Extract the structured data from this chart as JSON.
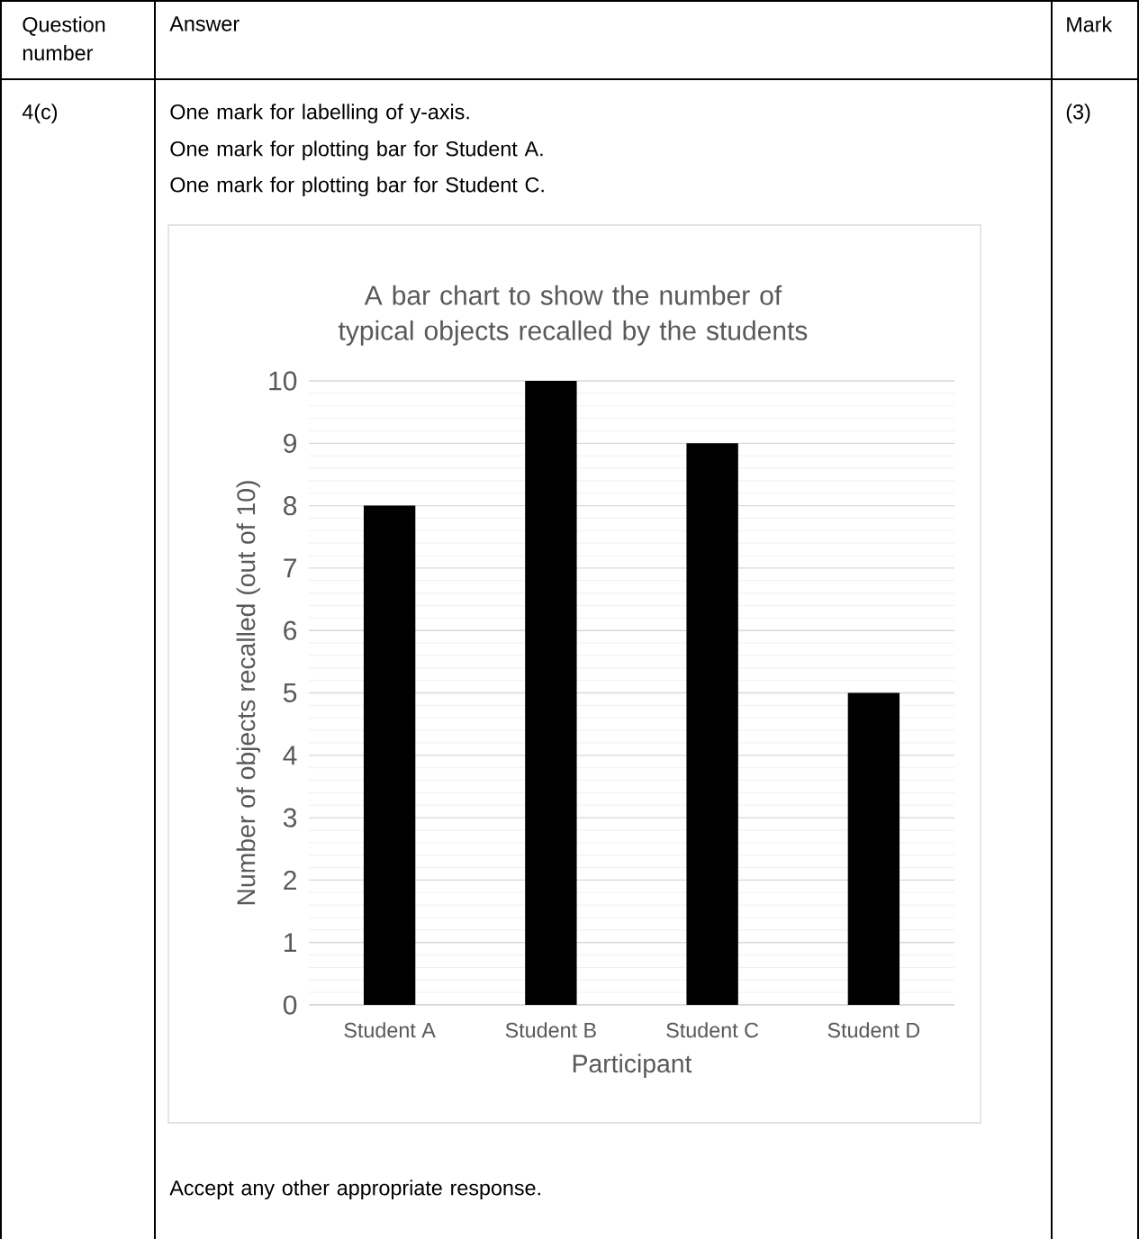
{
  "chart_data": {
    "type": "bar",
    "title": "A bar chart to show the number of typical objects recalled by the students",
    "xlabel": "Participant",
    "ylabel": "Number of objects recalled (out of 10)",
    "categories": [
      "Student A",
      "Student B",
      "Student C",
      "Student D"
    ],
    "values": [
      8,
      10,
      9,
      5
    ],
    "color": "#000000",
    "ylim": [
      0,
      10
    ],
    "yticks": [
      0,
      1,
      2,
      3,
      4,
      5,
      6,
      7,
      8,
      9,
      10
    ],
    "grid": "y",
    "annotations": [
      "Question number",
      "Answer",
      "Mark",
      "4(c)",
      "One mark for labelling of y-axis.",
      "One mark for plotting bar for Student A.",
      "One mark for plotting bar for Student C.",
      "(3)",
      "Accept any other appropriate response."
    ]
  }
}
